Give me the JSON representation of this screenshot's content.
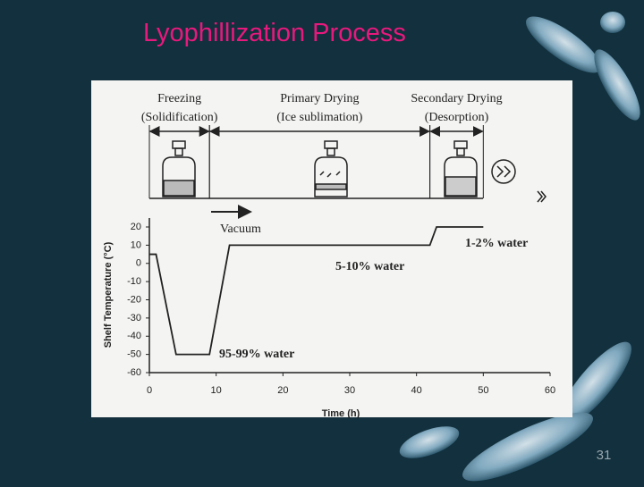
{
  "slide": {
    "title": "Lyophillization Process",
    "page_number": "31"
  },
  "chart_data": {
    "type": "line",
    "x_label": "Time (h)",
    "y_label": "Shelf Temperature (°C)",
    "x": [
      0,
      1,
      4,
      9,
      12,
      42,
      43,
      50
    ],
    "values": [
      5,
      5,
      -50,
      -50,
      10,
      10,
      20,
      20
    ],
    "color": "#222222",
    "xlim": [
      0,
      60
    ],
    "xticks": [
      0,
      10,
      20,
      30,
      40,
      50,
      60
    ],
    "ylim": [
      -60,
      20
    ],
    "yticks": [
      -60,
      -50,
      -40,
      -30,
      -20,
      -10,
      0,
      10,
      20
    ],
    "phases": [
      {
        "label": "Freezing",
        "sublabel": "(Solidification)",
        "start": 0,
        "end": 9
      },
      {
        "label": "Primary Drying",
        "sublabel": "(Ice sublimation)",
        "start": 9,
        "end": 42
      },
      {
        "label": "Secondary Drying",
        "sublabel": "(Desorption)",
        "start": 42,
        "end": 50
      }
    ],
    "annotations": [
      "Vacuum",
      "95-99% water",
      "5-10% water",
      "1-2% water"
    ]
  }
}
